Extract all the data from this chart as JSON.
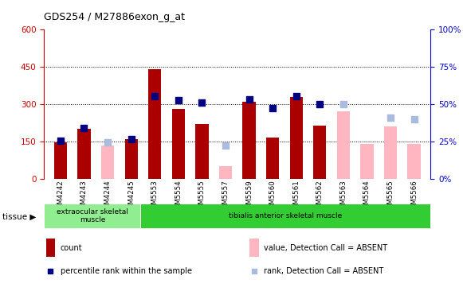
{
  "title": "GDS254 / M27886exon_g_at",
  "samples": [
    "GSM4242",
    "GSM4243",
    "GSM4244",
    "GSM4245",
    "GSM5553",
    "GSM5554",
    "GSM5555",
    "GSM5557",
    "GSM5559",
    "GSM5560",
    "GSM5561",
    "GSM5562",
    "GSM5563",
    "GSM5564",
    "GSM5565",
    "GSM5566"
  ],
  "count": [
    148,
    200,
    null,
    158,
    440,
    280,
    220,
    null,
    308,
    165,
    328,
    215,
    null,
    null,
    null,
    null
  ],
  "percentile_rank": [
    152,
    205,
    null,
    160,
    330,
    315,
    305,
    null,
    320,
    285,
    330,
    300,
    null,
    null,
    null,
    null
  ],
  "absent_value": [
    null,
    null,
    135,
    null,
    null,
    null,
    null,
    50,
    null,
    null,
    null,
    null,
    270,
    140,
    210,
    140
  ],
  "absent_rank": [
    null,
    null,
    148,
    null,
    null,
    null,
    null,
    135,
    null,
    null,
    null,
    null,
    300,
    null,
    245,
    240
  ],
  "tissue_groups": [
    {
      "label": "extraocular skeletal\nmuscle",
      "start": 0,
      "end": 4,
      "color": "#90EE90"
    },
    {
      "label": "tibialis anterior skeletal muscle",
      "start": 4,
      "end": 16,
      "color": "#32CD32"
    }
  ],
  "left_ylim": [
    0,
    600
  ],
  "right_ylim": [
    0,
    100
  ],
  "left_yticks": [
    0,
    150,
    300,
    450,
    600
  ],
  "right_yticks": [
    0,
    25,
    50,
    75,
    100
  ],
  "right_yticklabels": [
    "0%",
    "25%",
    "50%",
    "75%",
    "100%"
  ],
  "hlines": [
    150,
    300,
    450
  ],
  "bar_color_count": "#AA0000",
  "bar_color_absent": "#FFB6C1",
  "dot_color_rank": "#000080",
  "dot_color_absent_rank": "#AABBDD",
  "left_axis_color": "#CC0000",
  "right_axis_color": "#0000CC",
  "legend": [
    {
      "label": "count",
      "color": "#AA0000",
      "type": "bar"
    },
    {
      "label": "percentile rank within the sample",
      "color": "#000080",
      "type": "dot"
    },
    {
      "label": "value, Detection Call = ABSENT",
      "color": "#FFB6C1",
      "type": "bar"
    },
    {
      "label": "rank, Detection Call = ABSENT",
      "color": "#AABBDD",
      "type": "dot"
    }
  ]
}
